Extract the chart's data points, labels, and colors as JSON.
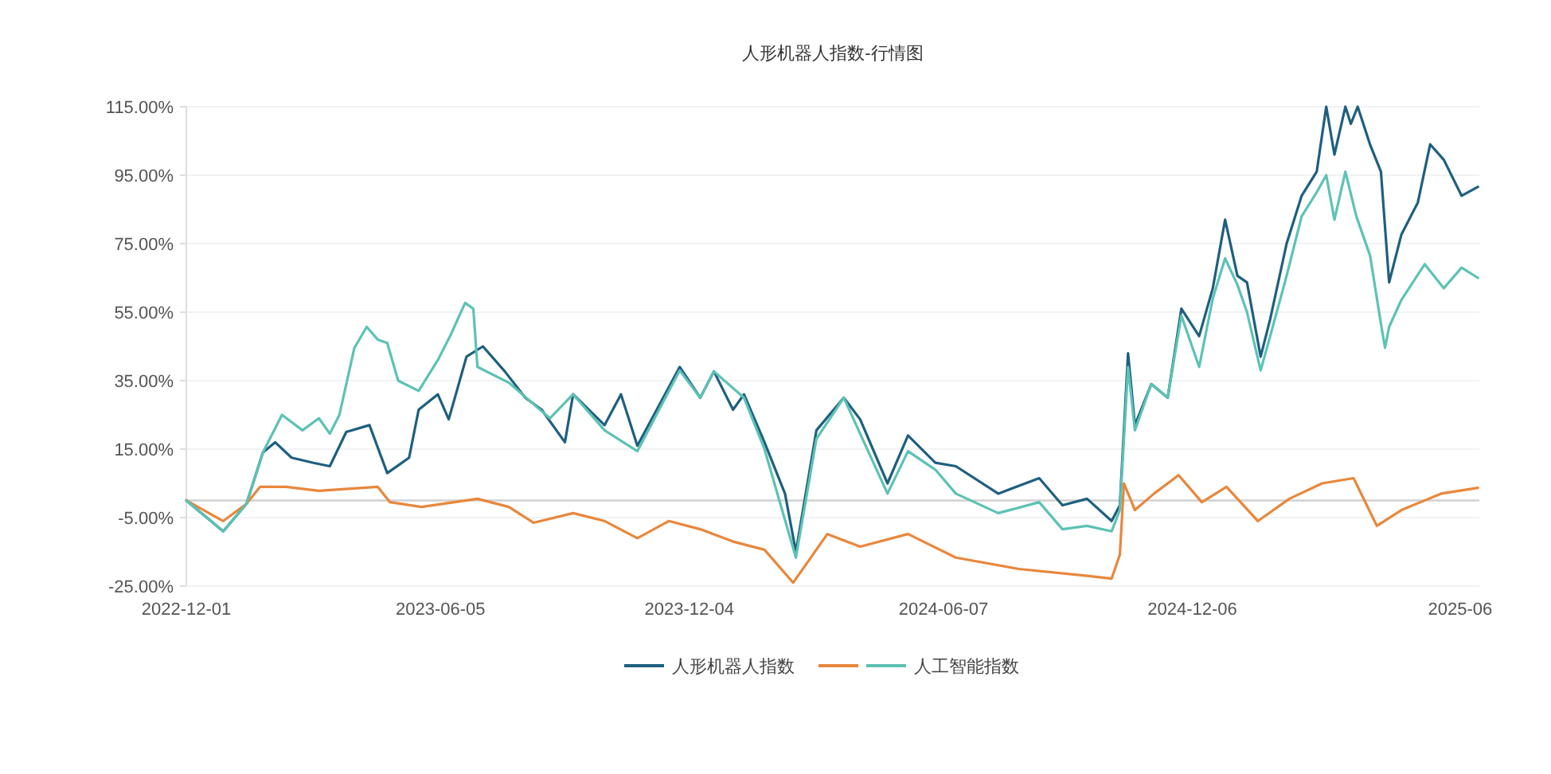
{
  "chart_data": {
    "type": "line",
    "title": "人形机器人指数-行情图",
    "xlim": [
      "2022-12-01",
      "2025-07-04"
    ],
    "xticks": [
      {
        "value": "2022-12-01",
        "label": "2022-12-01"
      },
      {
        "value": "2023-06-05",
        "label": "2023-06-05"
      },
      {
        "value": "2023-12-04",
        "label": "2023-12-04"
      },
      {
        "value": "2024-06-07",
        "label": "2024-06-07"
      },
      {
        "value": "2024-12-06",
        "label": "2024-12-06"
      },
      {
        "value": "2025-06-20",
        "label": "2025-06"
      }
    ],
    "ylim": [
      -25,
      115
    ],
    "yticks": [
      {
        "value": -25,
        "label": "-25.00%"
      },
      {
        "value": -5,
        "label": "-5.00%"
      },
      {
        "value": 15,
        "label": "15.00%"
      },
      {
        "value": 35,
        "label": "35.00%"
      },
      {
        "value": 55,
        "label": "55.00%"
      },
      {
        "value": 75,
        "label": "75.00%"
      },
      {
        "value": 95,
        "label": "95.00%"
      },
      {
        "value": 115,
        "label": "115.00%"
      }
    ],
    "grid": "y",
    "legend": "bottom",
    "marker": "none",
    "line_style": "solid",
    "ref_lines": [
      {
        "axis": "y",
        "value": 0,
        "color": "#d0d0d0"
      }
    ],
    "series": [
      {
        "name": "人形机器人指数",
        "color": "#1e5f80",
        "x": [
          "2022-12-01",
          "2022-12-28",
          "2023-01-14",
          "2023-01-26",
          "2023-02-04",
          "2023-02-16",
          "2023-03-04",
          "2023-03-16",
          "2023-03-28",
          "2023-04-14",
          "2023-04-27",
          "2023-05-13",
          "2023-05-20",
          "2023-06-03",
          "2023-06-11",
          "2023-06-24",
          "2023-07-06",
          "2023-07-22",
          "2023-08-06",
          "2023-08-18",
          "2023-09-04",
          "2023-09-10",
          "2023-10-03",
          "2023-10-15",
          "2023-10-27",
          "2023-11-27",
          "2023-12-12",
          "2023-12-22",
          "2024-01-05",
          "2024-01-13",
          "2024-01-28",
          "2024-02-12",
          "2024-02-20",
          "2024-03-06",
          "2024-03-26",
          "2024-04-07",
          "2024-04-27",
          "2024-05-12",
          "2024-06-01",
          "2024-06-16",
          "2024-07-17",
          "2024-08-16",
          "2024-09-02",
          "2024-09-20",
          "2024-10-08",
          "2024-10-14",
          "2024-10-20",
          "2024-10-25",
          "2024-11-06",
          "2024-11-18",
          "2024-11-28",
          "2024-12-11",
          "2024-12-21",
          "2024-12-30",
          "2025-01-08",
          "2025-01-15",
          "2025-01-25",
          "2025-02-01",
          "2025-02-13",
          "2025-02-24",
          "2025-03-07",
          "2025-03-14",
          "2025-03-20",
          "2025-03-28",
          "2025-04-01",
          "2025-04-06",
          "2025-04-15",
          "2025-04-23",
          "2025-04-29",
          "2025-05-08",
          "2025-05-20",
          "2025-05-29",
          "2025-06-08",
          "2025-06-21",
          "2025-07-03"
        ],
        "values": [
          0,
          -9,
          -1,
          14,
          17,
          12.5,
          11,
          10,
          20,
          22,
          8,
          12.5,
          26.5,
          31,
          23.7,
          42,
          45,
          37.7,
          30,
          26.5,
          17,
          31,
          22,
          31,
          16,
          39,
          30,
          37.7,
          26.5,
          31,
          17,
          2,
          -15,
          20.5,
          30,
          23.7,
          5,
          19,
          11,
          10,
          2,
          6.5,
          -1.4,
          0.5,
          -6,
          -1.4,
          43,
          22,
          34,
          30,
          56,
          48,
          62,
          82,
          65.6,
          63.7,
          42,
          53,
          75,
          89,
          96,
          115,
          101,
          115,
          110,
          115,
          104,
          96,
          63.7,
          77.7,
          87,
          104,
          99.5,
          89,
          91.6
        ]
      },
      {
        "color": "#e8873c",
        "x": [
          "2022-12-01",
          "2022-12-28",
          "2023-01-14",
          "2023-01-24",
          "2023-02-12",
          "2023-03-08",
          "2023-03-25",
          "2023-04-20",
          "2023-04-29",
          "2023-05-22",
          "2023-06-15",
          "2023-07-02",
          "2023-07-25",
          "2023-08-12",
          "2023-09-10",
          "2023-10-03",
          "2023-10-27",
          "2023-11-19",
          "2023-12-12",
          "2024-01-05",
          "2024-01-28",
          "2024-02-18",
          "2024-03-14",
          "2024-04-07",
          "2024-05-12",
          "2024-06-16",
          "2024-08-01",
          "2024-09-20",
          "2024-10-08",
          "2024-10-14",
          "2024-10-17",
          "2024-10-25",
          "2024-11-08",
          "2024-11-26",
          "2024-12-13",
          "2024-12-31",
          "2025-01-23",
          "2025-02-15",
          "2025-03-11",
          "2025-04-03",
          "2025-04-20",
          "2025-05-08",
          "2025-06-06",
          "2025-07-03"
        ],
        "values": [
          0,
          -6,
          -1,
          4,
          4,
          2.8,
          3.3,
          4,
          -0.5,
          -1.9,
          -0.5,
          0.5,
          -1.9,
          -6.5,
          -3.7,
          -6,
          -11,
          -6,
          -8.4,
          -12,
          -14.4,
          -24,
          -9.8,
          -13.5,
          -9.8,
          -16.7,
          -20,
          -22,
          -22.8,
          -15.8,
          5,
          -2.8,
          2,
          7.4,
          -0.5,
          4,
          -6,
          0.5,
          5,
          6.5,
          -7.4,
          -2.8,
          2,
          3.7
        ]
      },
      {
        "name": "人工智能指数",
        "color": "#5cc2b4",
        "x": [
          "2022-12-01",
          "2022-12-28",
          "2023-01-14",
          "2023-01-26",
          "2023-02-09",
          "2023-02-24",
          "2023-03-08",
          "2023-03-16",
          "2023-03-23",
          "2023-04-03",
          "2023-04-12",
          "2023-04-20",
          "2023-04-27",
          "2023-05-05",
          "2023-05-20",
          "2023-06-03",
          "2023-06-12",
          "2023-06-23",
          "2023-06-29",
          "2023-07-02",
          "2023-07-25",
          "2023-08-24",
          "2023-09-10",
          "2023-10-03",
          "2023-10-27",
          "2023-11-27",
          "2023-12-12",
          "2023-12-22",
          "2024-01-13",
          "2024-01-28",
          "2024-02-20",
          "2024-03-06",
          "2024-03-26",
          "2024-04-27",
          "2024-05-12",
          "2024-06-01",
          "2024-06-16",
          "2024-07-17",
          "2024-08-16",
          "2024-09-02",
          "2024-09-20",
          "2024-10-08",
          "2024-10-14",
          "2024-10-20",
          "2024-10-25",
          "2024-11-06",
          "2024-11-18",
          "2024-11-28",
          "2024-12-11",
          "2024-12-21",
          "2024-12-30",
          "2025-01-08",
          "2025-01-15",
          "2025-01-25",
          "2025-02-01",
          "2025-02-13",
          "2025-02-24",
          "2025-03-07",
          "2025-03-14",
          "2025-03-20",
          "2025-03-28",
          "2025-04-05",
          "2025-04-15",
          "2025-04-23",
          "2025-04-26",
          "2025-04-29",
          "2025-05-08",
          "2025-05-25",
          "2025-06-08",
          "2025-06-21",
          "2025-07-03"
        ],
        "values": [
          0,
          -9,
          -1,
          14,
          25,
          20.5,
          24,
          19.5,
          25,
          44.6,
          50.7,
          47,
          46,
          35,
          32,
          41,
          48,
          57.7,
          56,
          39,
          34.4,
          24,
          31,
          20.5,
          14.4,
          38,
          30,
          37.7,
          30,
          15,
          -16.7,
          18,
          30,
          2,
          14.4,
          9,
          2,
          -3.7,
          -0.5,
          -8.4,
          -7.4,
          -9,
          -2.8,
          39,
          20.5,
          34,
          30,
          54,
          39,
          59,
          70.7,
          63,
          55,
          38,
          48,
          65.6,
          83,
          90,
          95,
          82,
          96,
          83,
          71.6,
          51.6,
          44.6,
          50.7,
          58.6,
          69,
          62,
          68,
          65
        ]
      }
    ]
  }
}
